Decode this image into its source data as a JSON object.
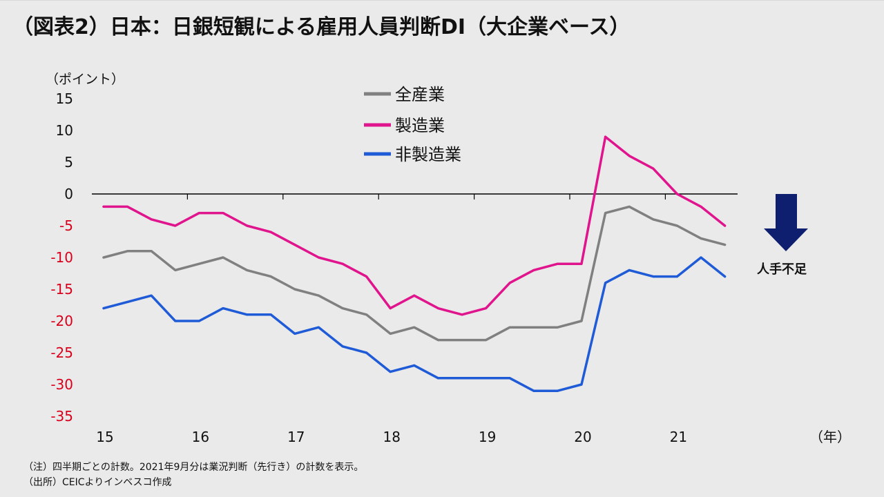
{
  "title": "（図表2）日本：日銀短観による雇用人員判断DI（大企業ベース）",
  "y_unit": "（ポイント）",
  "x_unit": "（年）",
  "arrow_label": "人手不足",
  "notes": [
    "（注）四半期ごとの計数。2021年9月分は業況判断（先行き）の計数を表示。",
    "（出所）CEICよりインベスコ作成"
  ],
  "colors": {
    "all_industries": "#808080",
    "manufacturing": "#e0148c",
    "non_manufacturing": "#1f5bd6",
    "negative_tick": "#d9001b",
    "arrow": "#0d1f6e"
  },
  "chart_data": {
    "type": "line",
    "title": "（図表2）日本：日銀短観による雇用人員判断DI（大企業ベース）",
    "xlabel": "（年）",
    "ylabel": "（ポイント）",
    "ylim": [
      -35,
      15
    ],
    "yticks": [
      15,
      10,
      5,
      0,
      -5,
      -10,
      -15,
      -20,
      -25,
      -30,
      -35
    ],
    "x_tick_labels": [
      "15",
      "16",
      "17",
      "18",
      "19",
      "20",
      "21"
    ],
    "x": [
      "2015Q1",
      "2015Q2",
      "2015Q3",
      "2015Q4",
      "2016Q1",
      "2016Q2",
      "2016Q3",
      "2016Q4",
      "2017Q1",
      "2017Q2",
      "2017Q3",
      "2017Q4",
      "2018Q1",
      "2018Q2",
      "2018Q3",
      "2018Q4",
      "2019Q1",
      "2019Q2",
      "2019Q3",
      "2019Q4",
      "2020Q1",
      "2020Q2",
      "2020Q3",
      "2020Q4",
      "2021Q1",
      "2021Q2",
      "2021Q3"
    ],
    "grid": false,
    "legend_position": "top-center",
    "series": [
      {
        "name": "全産業",
        "color": "#808080",
        "values": [
          -10,
          -9,
          -9,
          -12,
          -11,
          -10,
          -12,
          -13,
          -15,
          -16,
          -18,
          -19,
          -22,
          -21,
          -23,
          -23,
          -23,
          -21,
          -21,
          -21,
          -20,
          -3,
          -2,
          -4,
          -5,
          -7,
          -8
        ]
      },
      {
        "name": "製造業",
        "color": "#e0148c",
        "values": [
          -2,
          -2,
          -4,
          -5,
          -3,
          -3,
          -5,
          -6,
          -8,
          -10,
          -11,
          -13,
          -18,
          -16,
          -18,
          -19,
          -18,
          -14,
          -12,
          -11,
          -11,
          9,
          6,
          4,
          0,
          -2,
          -5
        ]
      },
      {
        "name": "非製造業",
        "color": "#1f5bd6",
        "values": [
          -18,
          -17,
          -16,
          -20,
          -20,
          -18,
          -19,
          -19,
          -22,
          -21,
          -24,
          -25,
          -28,
          -27,
          -29,
          -29,
          -29,
          -29,
          -31,
          -31,
          -30,
          -14,
          -12,
          -13,
          -13,
          -10,
          -13
        ]
      }
    ]
  }
}
